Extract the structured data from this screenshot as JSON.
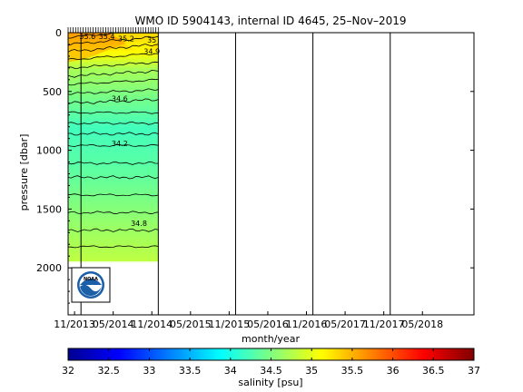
{
  "chart_data": {
    "type": "heatmap",
    "title": "WMO ID 5904143, internal ID 4645, 25–Nov–2019",
    "xlabel": "month/year",
    "ylabel": "pressure [dbar]",
    "colorbar_label": "salinity [psu]",
    "x_tick_labels": [
      "11/2013",
      "05/2014",
      "11/2014",
      "05/2015",
      "11/2015",
      "05/2016",
      "11/2016",
      "05/2017",
      "11/2017",
      "05/2018"
    ],
    "x_tick_dates": [
      "2013-11",
      "2014-05",
      "2014-11",
      "2015-05",
      "2015-11",
      "2016-05",
      "2016-11",
      "2017-05",
      "2017-11",
      "2018-05"
    ],
    "x_range": [
      "2013-10",
      "2019-01"
    ],
    "y_tick_labels": [
      "0",
      "500",
      "1000",
      "1500",
      "2000"
    ],
    "y_ticks": [
      0,
      500,
      1000,
      1500,
      2000
    ],
    "y_range": [
      0,
      2400
    ],
    "y_reversed": true,
    "colorbar_tick_labels": [
      "32",
      "32.5",
      "33",
      "33.5",
      "34",
      "34.5",
      "35",
      "35.5",
      "36",
      "36.5",
      "37"
    ],
    "colorbar_ticks": [
      32,
      32.5,
      33,
      33.5,
      34,
      34.5,
      35,
      35.5,
      36,
      36.5,
      37
    ],
    "colorbar_range": [
      32,
      37
    ],
    "colormap": "jet",
    "profile_data_range": [
      "2013-10",
      "2014-12"
    ],
    "vertical_marker_dates": [
      "2013-12",
      "2014-12",
      "2015-12",
      "2016-12",
      "2017-12"
    ],
    "contour_labels": [
      {
        "text": "35.6",
        "date": "2014-01",
        "pressure": 30
      },
      {
        "text": "35.4",
        "date": "2014-04",
        "pressure": 30
      },
      {
        "text": "35.2",
        "date": "2014-07",
        "pressure": 50
      },
      {
        "text": "35",
        "date": "2014-11",
        "pressure": 60
      },
      {
        "text": "34.9",
        "date": "2014-11",
        "pressure": 160
      },
      {
        "text": "34.6",
        "date": "2014-06",
        "pressure": 560
      },
      {
        "text": "34.2",
        "date": "2014-06",
        "pressure": 940
      },
      {
        "text": "34.8",
        "date": "2014-09",
        "pressure": 1620
      }
    ],
    "isohaline_levels": [
      35.6,
      35.4,
      35.2,
      35.0,
      34.9,
      34.8,
      34.7,
      34.6,
      34.5,
      34.4,
      34.3,
      34.2,
      34.1,
      34.0,
      34.65,
      34.75,
      34.85,
      34.9
    ]
  },
  "logo_text": "NOAA"
}
